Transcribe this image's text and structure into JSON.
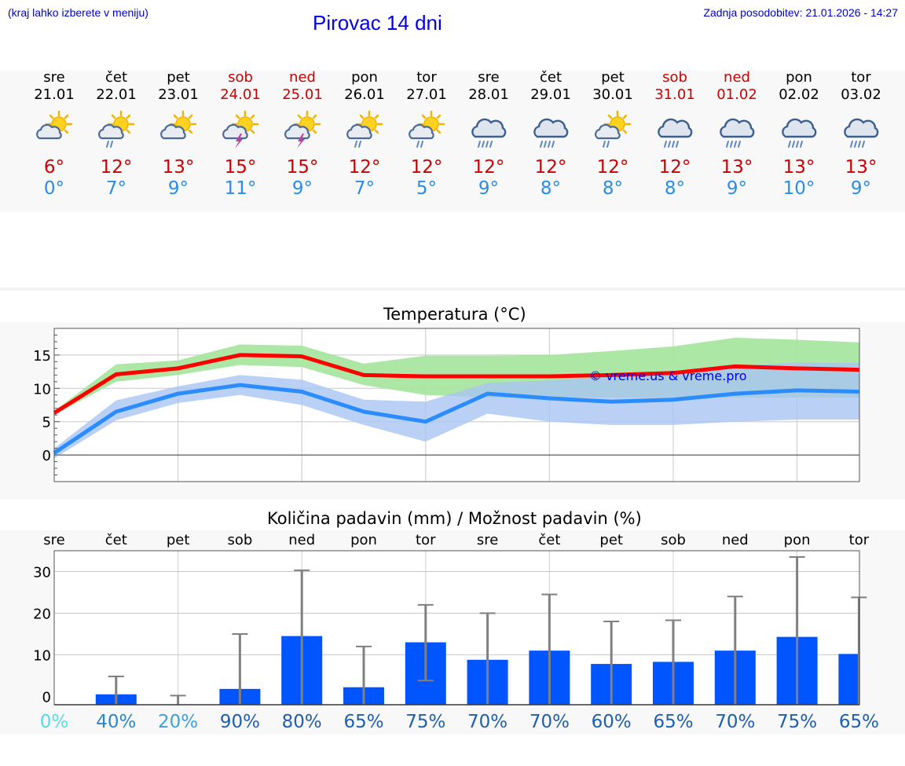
{
  "header": {
    "hint": "(kraj lahko izberete v meniju)",
    "title": "Pirovac 14 dni",
    "updated": "Zadnja posodobitev: 21.01.2026 - 14:27"
  },
  "days": [
    {
      "name": "sre",
      "date": "21.01",
      "icon": "sun-cloud-icon",
      "tmax": "6°",
      "tmin": "0°",
      "weekend": false
    },
    {
      "name": "čet",
      "date": "22.01",
      "icon": "sun-cloud-rain-icon",
      "tmax": "12°",
      "tmin": "7°",
      "weekend": false
    },
    {
      "name": "pet",
      "date": "23.01",
      "icon": "sun-cloud-icon",
      "tmax": "13°",
      "tmin": "9°",
      "weekend": false
    },
    {
      "name": "sob",
      "date": "24.01",
      "icon": "sun-thunder-icon",
      "tmax": "15°",
      "tmin": "11°",
      "weekend": true
    },
    {
      "name": "ned",
      "date": "25.01",
      "icon": "sun-thunder-icon",
      "tmax": "15°",
      "tmin": "9°",
      "weekend": true
    },
    {
      "name": "pon",
      "date": "26.01",
      "icon": "sun-cloud-rain-icon",
      "tmax": "12°",
      "tmin": "7°",
      "weekend": false
    },
    {
      "name": "tor",
      "date": "27.01",
      "icon": "sun-cloud-rain-icon",
      "tmax": "12°",
      "tmin": "5°",
      "weekend": false
    },
    {
      "name": "sre",
      "date": "28.01",
      "icon": "cloud-rain-icon",
      "tmax": "12°",
      "tmin": "9°",
      "weekend": false
    },
    {
      "name": "čet",
      "date": "29.01",
      "icon": "cloud-rain-icon",
      "tmax": "12°",
      "tmin": "8°",
      "weekend": false
    },
    {
      "name": "pet",
      "date": "30.01",
      "icon": "sun-cloud-rain-icon",
      "tmax": "12°",
      "tmin": "8°",
      "weekend": false
    },
    {
      "name": "sob",
      "date": "31.01",
      "icon": "cloud-rain-icon",
      "tmax": "12°",
      "tmin": "8°",
      "weekend": true
    },
    {
      "name": "ned",
      "date": "01.02",
      "icon": "cloud-rain-icon",
      "tmax": "13°",
      "tmin": "9°",
      "weekend": true
    },
    {
      "name": "pon",
      "date": "02.02",
      "icon": "cloud-rain-icon",
      "tmax": "13°",
      "tmin": "10°",
      "weekend": false
    },
    {
      "name": "tor",
      "date": "03.02",
      "icon": "cloud-rain-icon",
      "tmax": "13°",
      "tmin": "9°",
      "weekend": false
    }
  ],
  "colors": {
    "max_line": "#ff0000",
    "max_band": "#a8e6a1",
    "min_line": "#2a8cff",
    "min_band": "#a9c4f2",
    "overlap_band": "#7fbfb5",
    "bar": "#0055ff",
    "errbar": "#808080",
    "copyright": "#0000ee",
    "weekend": "#cc0000"
  },
  "chart_data": [
    {
      "type": "line",
      "title": "Temperatura (°C)",
      "xlabel": "",
      "ylabel": "",
      "ylim": [
        -4,
        19
      ],
      "yticks": [
        "0",
        "5",
        "10",
        "15"
      ],
      "grid": true,
      "watermark": "© vreme.us & vreme.pro",
      "x": [
        0,
        1,
        2,
        3,
        4,
        5,
        6,
        7,
        8,
        9,
        10,
        11,
        12,
        13
      ],
      "series": [
        {
          "name": "max",
          "values": [
            6.3,
            12.1,
            13.0,
            15.0,
            14.8,
            12.0,
            11.8,
            11.8,
            11.8,
            12.0,
            12.3,
            13.3,
            13.0,
            12.8
          ],
          "band_low": [
            6.0,
            11.0,
            12.0,
            13.5,
            13.2,
            10.5,
            9.0,
            8.6,
            8.6,
            8.6,
            8.6,
            8.6,
            8.6,
            8.6
          ],
          "band_high": [
            6.6,
            13.6,
            14.2,
            16.6,
            16.4,
            13.7,
            14.9,
            14.9,
            15.0,
            15.6,
            16.3,
            17.6,
            17.3,
            16.9
          ]
        },
        {
          "name": "min",
          "values": [
            0.3,
            6.5,
            9.2,
            10.5,
            9.5,
            6.5,
            5.0,
            9.2,
            8.5,
            8.0,
            8.3,
            9.2,
            9.7,
            9.5
          ],
          "band_low": [
            -0.5,
            5.2,
            7.8,
            9.0,
            7.5,
            4.5,
            2.0,
            6.2,
            5.0,
            4.5,
            4.5,
            5.0,
            5.3,
            5.3
          ],
          "band_high": [
            1.0,
            8.2,
            10.3,
            12.0,
            11.3,
            8.3,
            8.0,
            10.8,
            11.2,
            11.8,
            12.6,
            13.3,
            13.9,
            13.8
          ]
        }
      ]
    },
    {
      "type": "bar",
      "title": "Količina padavin (mm) / Možnost padavin (%)",
      "ylim": [
        -2,
        35
      ],
      "yticks": [
        "0",
        "10",
        "20",
        "30"
      ],
      "grid": true,
      "categories": [
        "sre",
        "čet",
        "pet",
        "sob",
        "ned",
        "pon",
        "tor",
        "sre",
        "čet",
        "pet",
        "sob",
        "ned",
        "pon",
        "tor"
      ],
      "values": [
        0,
        0.5,
        0,
        1.8,
        14.5,
        2.2,
        13.0,
        8.8,
        11.0,
        7.8,
        8.3,
        11.0,
        14.3,
        10.2
      ],
      "err_low": [
        0,
        0,
        0,
        0,
        0,
        0,
        3.8,
        0,
        0,
        0,
        0,
        0,
        0,
        0
      ],
      "err_high": [
        0,
        4.8,
        0.2,
        15.0,
        30.3,
        12.0,
        22.0,
        20.0,
        24.5,
        18.0,
        18.3,
        24.0,
        33.5,
        23.8
      ],
      "probability": [
        "0%",
        "40%",
        "20%",
        "90%",
        "80%",
        "65%",
        "75%",
        "70%",
        "70%",
        "60%",
        "65%",
        "70%",
        "75%",
        "65%"
      ]
    }
  ]
}
